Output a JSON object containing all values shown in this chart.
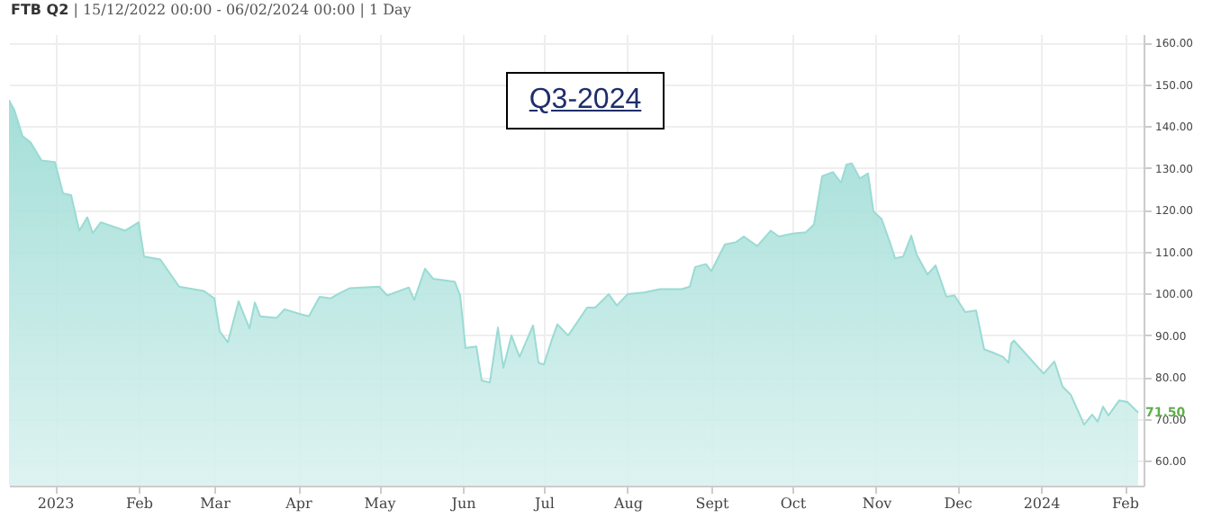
{
  "chart_data": {
    "type": "area",
    "title": "FTB Q2",
    "subtitle": "| 15/12/2022 00:00 - 06/02/2024 00:00 | 1 Day",
    "annotations": [
      "Q3-2024"
    ],
    "x": [
      "2022-12-15",
      "2022-12-17",
      "2022-12-20",
      "2022-12-23",
      "2022-12-27",
      "2023-01-01",
      "2023-01-04",
      "2023-01-07",
      "2023-01-10",
      "2023-01-13",
      "2023-01-15",
      "2023-01-18",
      "2023-01-27",
      "2023-02-01",
      "2023-02-03",
      "2023-02-09",
      "2023-02-16",
      "2023-02-25",
      "2023-03-01",
      "2023-03-03",
      "2023-03-06",
      "2023-03-10",
      "2023-03-14",
      "2023-03-16",
      "2023-03-18",
      "2023-03-24",
      "2023-03-27",
      "2023-04-01",
      "2023-04-05",
      "2023-04-09",
      "2023-04-13",
      "2023-04-16",
      "2023-04-20",
      "2023-05-01",
      "2023-05-04",
      "2023-05-12",
      "2023-05-14",
      "2023-05-18",
      "2023-05-21",
      "2023-05-29",
      "2023-05-31",
      "2023-06-02",
      "2023-06-06",
      "2023-06-08",
      "2023-06-11",
      "2023-06-14",
      "2023-06-16",
      "2023-06-19",
      "2023-06-22",
      "2023-06-27",
      "2023-06-29",
      "2023-07-01",
      "2023-07-04",
      "2023-07-06",
      "2023-07-10",
      "2023-07-17",
      "2023-07-20",
      "2023-07-25",
      "2023-07-28",
      "2023-08-01",
      "2023-08-07",
      "2023-08-13",
      "2023-08-21",
      "2023-08-24",
      "2023-08-26",
      "2023-08-30",
      "2023-09-01",
      "2023-09-06",
      "2023-09-10",
      "2023-09-13",
      "2023-09-18",
      "2023-09-23",
      "2023-09-26",
      "2023-10-01",
      "2023-10-06",
      "2023-10-09",
      "2023-10-12",
      "2023-10-16",
      "2023-10-19",
      "2023-10-21",
      "2023-10-23",
      "2023-10-26",
      "2023-10-29",
      "2023-10-31",
      "2023-11-03",
      "2023-11-06",
      "2023-11-08",
      "2023-11-11",
      "2023-11-14",
      "2023-11-16",
      "2023-11-20",
      "2023-11-23",
      "2023-11-27",
      "2023-11-30",
      "2023-12-04",
      "2023-12-08",
      "2023-12-11",
      "2023-12-14",
      "2023-12-18",
      "2023-12-20",
      "2023-12-21",
      "2023-12-22",
      "2024-01-02",
      "2024-01-06",
      "2024-01-09",
      "2024-01-12",
      "2024-01-15",
      "2024-01-17",
      "2024-01-20",
      "2024-01-22",
      "2024-01-24",
      "2024-01-26",
      "2024-01-30",
      "2024-02-02",
      "2024-02-06"
    ],
    "values": [
      146.2,
      143.8,
      137.6,
      136.1,
      131.8,
      131.4,
      123.9,
      123.5,
      115,
      118.2,
      114.4,
      117,
      115,
      117,
      108.8,
      108.1,
      101.6,
      100.6,
      98.8,
      90.9,
      88.3,
      98.1,
      91.6,
      97.8,
      94.5,
      94.1,
      96.2,
      95.2,
      94.5,
      99.2,
      98.8,
      99.9,
      101.2,
      101.6,
      99.5,
      101.4,
      98.4,
      105.9,
      103.5,
      102.8,
      99.5,
      86.9,
      87.3,
      79.1,
      78.7,
      91.8,
      82.2,
      89.9,
      84.8,
      92.3,
      83.4,
      83,
      89,
      92.6,
      89.9,
      96.6,
      96.6,
      99.8,
      97.1,
      99.8,
      100.2,
      101,
      101,
      101.6,
      106.3,
      107,
      105.3,
      111.7,
      112.2,
      113.6,
      111.3,
      115,
      113.6,
      114.3,
      114.6,
      116.5,
      128,
      129,
      126.5,
      130.8,
      131.1,
      127.5,
      128.7,
      119.6,
      117.8,
      112.4,
      108.4,
      108.8,
      113.8,
      109.3,
      104.5,
      106.7,
      99.2,
      99.5,
      95.5,
      95.9,
      86.6,
      85.9,
      84.8,
      83.4,
      88,
      88.7,
      80.8,
      83.7,
      77.7,
      75.8,
      71.5,
      68.6,
      71,
      69.3,
      72.9,
      70.8,
      74.4,
      74,
      71.5
    ],
    "color": "#9adbd4",
    "value_labels": [
      null,
      null,
      null,
      null,
      null,
      null,
      null,
      null,
      null,
      null,
      null,
      null,
      null,
      null,
      null,
      null,
      null,
      null,
      null,
      null,
      null,
      null,
      null,
      null,
      null,
      null,
      null,
      null,
      null,
      null,
      null,
      null,
      null,
      null,
      null,
      null,
      null,
      null,
      null,
      null,
      null,
      null,
      null,
      null,
      null,
      null,
      null,
      null,
      null,
      null,
      null,
      null,
      null,
      null,
      null,
      null,
      null,
      null,
      null,
      null,
      null,
      null,
      null,
      null,
      null,
      null,
      null,
      null,
      null,
      null,
      null,
      null,
      null,
      null,
      null,
      null,
      null,
      null,
      null,
      null,
      null,
      null,
      null,
      null,
      null,
      null,
      null,
      null,
      null,
      null,
      null,
      null,
      null,
      null,
      null,
      null,
      null,
      null,
      null,
      null,
      null,
      null,
      null,
      null,
      null,
      null,
      null,
      null,
      null,
      null,
      null,
      null,
      null,
      null,
      "71.50"
    ],
    "xlim": [
      "2022-12-15",
      "2024-02-08"
    ],
    "xticks": [
      {
        "value": "2023-01-01",
        "label": "2023"
      },
      {
        "value": "2023-02-01",
        "label": "Feb"
      },
      {
        "value": "2023-03-01",
        "label": "Mar"
      },
      {
        "value": "2023-04-01",
        "label": "Apr"
      },
      {
        "value": "2023-05-01",
        "label": "May"
      },
      {
        "value": "2023-06-01",
        "label": "Jun"
      },
      {
        "value": "2023-07-01",
        "label": "Jul"
      },
      {
        "value": "2023-08-01",
        "label": "Aug"
      },
      {
        "value": "2023-09-01",
        "label": "Sept"
      },
      {
        "value": "2023-10-01",
        "label": "Oct"
      },
      {
        "value": "2023-11-01",
        "label": "Nov"
      },
      {
        "value": "2023-12-01",
        "label": "Dec"
      },
      {
        "value": "2024-01-01",
        "label": "2024"
      },
      {
        "value": "2024-02-01",
        "label": "Feb"
      }
    ],
    "ylim": [
      54,
      162
    ],
    "yticks": [
      {
        "value": 60,
        "label": "60.00"
      },
      {
        "value": 70,
        "label": "70.00"
      },
      {
        "value": 80,
        "label": "80.00"
      },
      {
        "value": 90,
        "label": "90.00"
      },
      {
        "value": 100,
        "label": "100.00"
      },
      {
        "value": 110,
        "label": "110.00"
      },
      {
        "value": 120,
        "label": "120.00"
      },
      {
        "value": 130,
        "label": "130.00"
      },
      {
        "value": 140,
        "label": "140.00"
      },
      {
        "value": 150,
        "label": "150.00"
      },
      {
        "value": 160,
        "label": "160.00"
      }
    ],
    "grid": true
  }
}
